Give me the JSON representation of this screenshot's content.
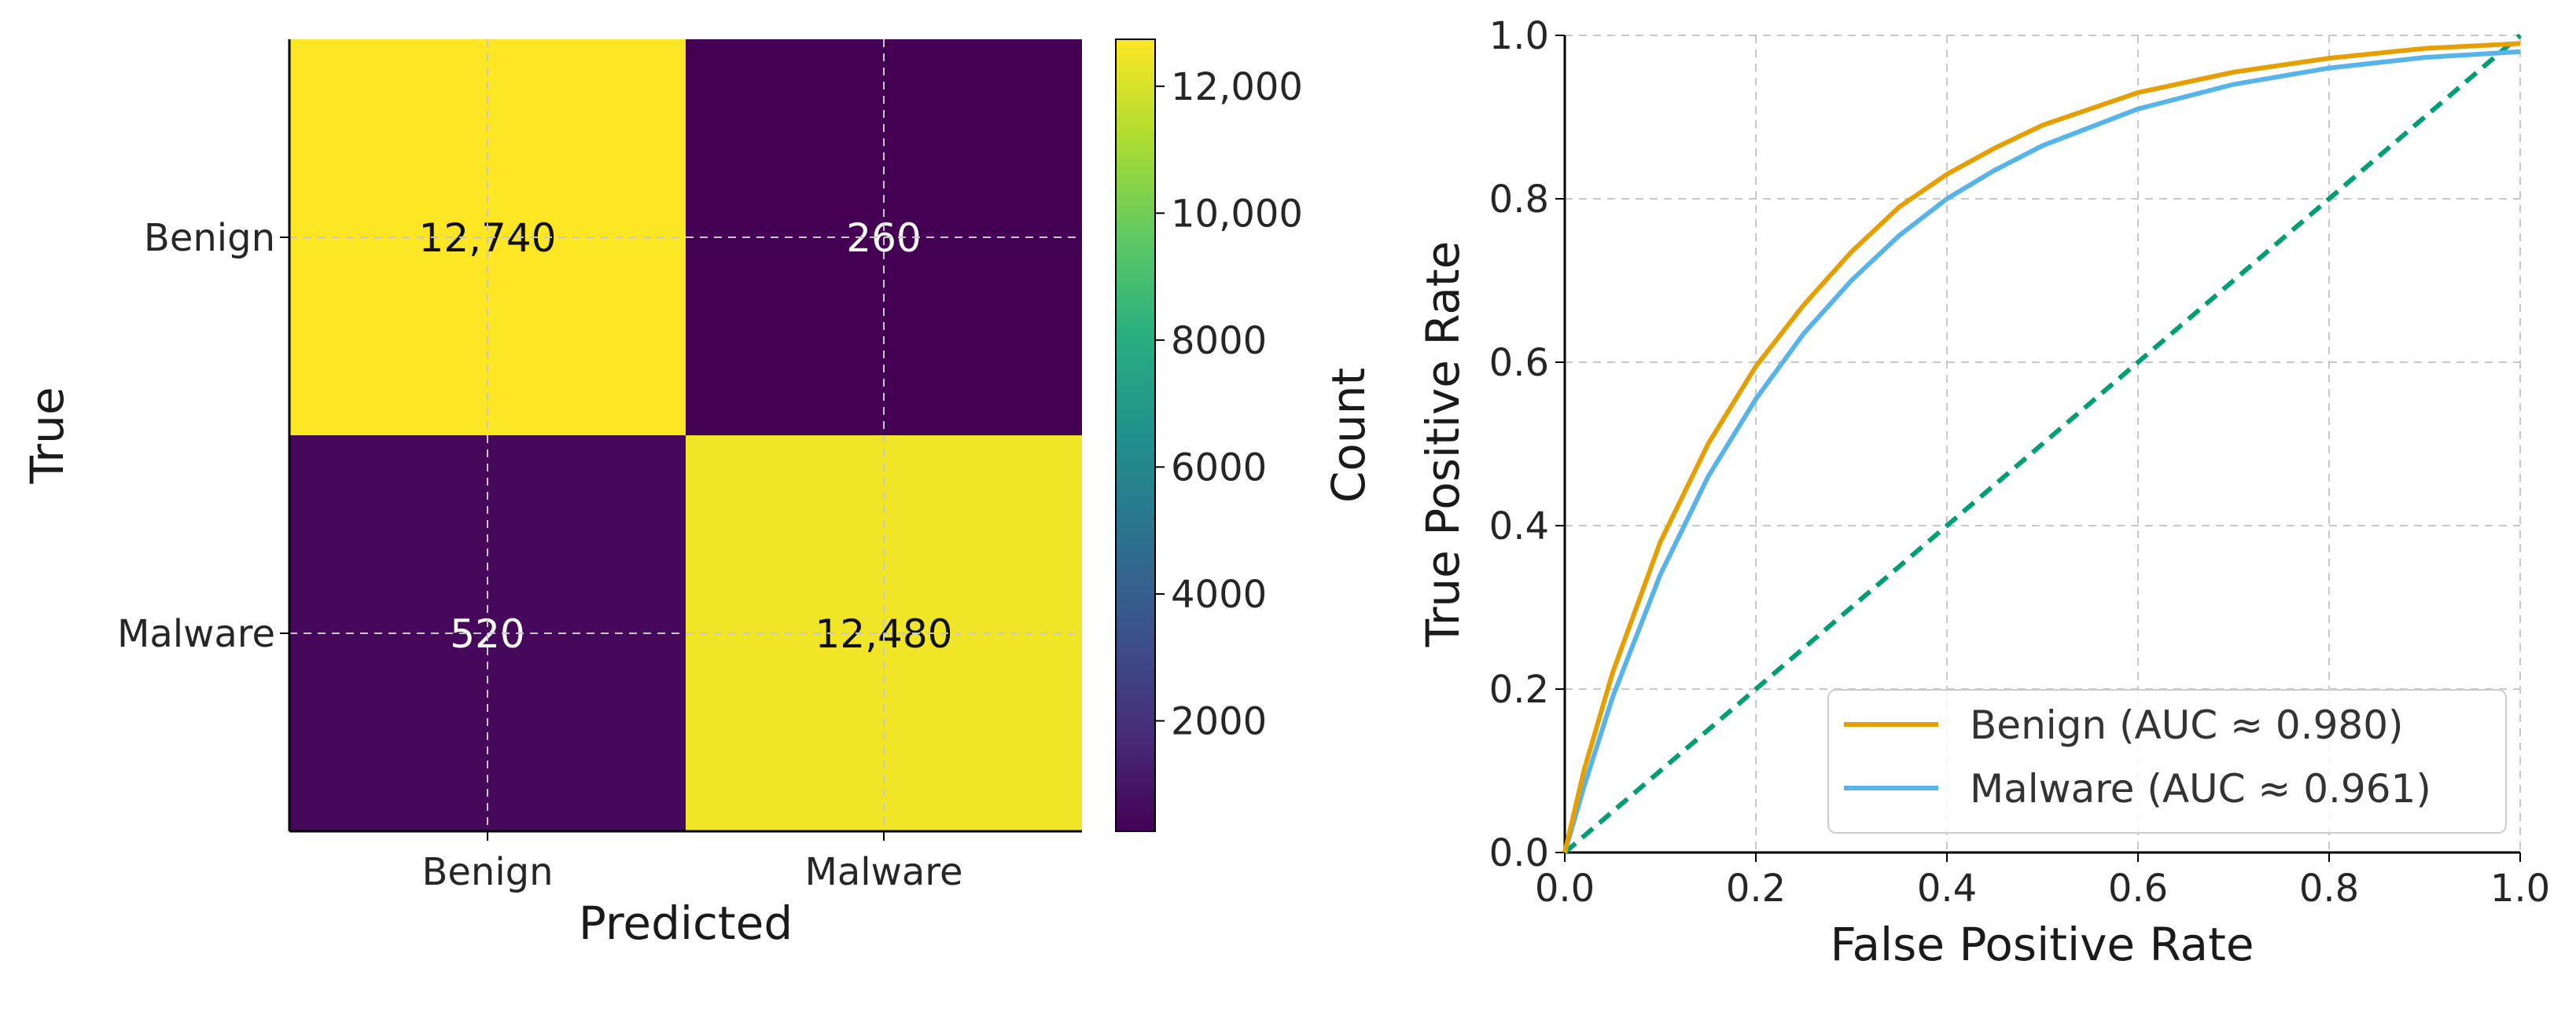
{
  "chart_data": [
    {
      "type": "heatmap",
      "xlabel": "Predicted",
      "ylabel": "True",
      "x_categories": [
        "Benign",
        "Malware"
      ],
      "y_categories": [
        "Benign",
        "Malware"
      ],
      "values": [
        [
          12740,
          260
        ],
        [
          520,
          12480
        ]
      ],
      "cell_labels": [
        [
          "12,740",
          "260"
        ],
        [
          "520",
          "12,480"
        ]
      ],
      "colormap": "viridis",
      "colorbar": {
        "label": "Count",
        "range": [
          260,
          12740
        ],
        "ticks": [
          2000,
          4000,
          6000,
          8000,
          10000,
          12000
        ],
        "tick_labels": [
          "2000",
          "4000",
          "6000",
          "8000",
          "10,000",
          "12,000"
        ]
      },
      "grid": true
    },
    {
      "type": "line",
      "xlabel": "False Positive Rate",
      "ylabel": "True Positive Rate",
      "xlim": [
        0,
        1
      ],
      "ylim": [
        0,
        1
      ],
      "xticks": [
        "0.0",
        "0.2",
        "0.4",
        "0.6",
        "0.8",
        "1.0"
      ],
      "yticks": [
        "0.0",
        "0.2",
        "0.4",
        "0.6",
        "0.8",
        "1.0"
      ],
      "grid": true,
      "legend_position": "bottom-right",
      "series": [
        {
          "name": "Benign (AUC ≈ 0.980)",
          "color": "#E69F00",
          "x": [
            0,
            0.02,
            0.05,
            0.1,
            0.15,
            0.2,
            0.25,
            0.3,
            0.35,
            0.4,
            0.45,
            0.5,
            0.6,
            0.7,
            0.8,
            0.9,
            1.0
          ],
          "y": [
            0,
            0.1,
            0.22,
            0.38,
            0.5,
            0.595,
            0.67,
            0.735,
            0.79,
            0.83,
            0.862,
            0.89,
            0.93,
            0.955,
            0.972,
            0.984,
            0.99
          ]
        },
        {
          "name": "Malware (AUC ≈ 0.961)",
          "color": "#56B4E9",
          "x": [
            0,
            0.02,
            0.05,
            0.1,
            0.15,
            0.2,
            0.25,
            0.3,
            0.35,
            0.4,
            0.45,
            0.5,
            0.6,
            0.7,
            0.8,
            0.9,
            1.0
          ],
          "y": [
            0,
            0.08,
            0.19,
            0.34,
            0.46,
            0.555,
            0.635,
            0.7,
            0.755,
            0.8,
            0.835,
            0.865,
            0.91,
            0.94,
            0.96,
            0.973,
            0.98
          ]
        },
        {
          "name": "",
          "color": "#009E73",
          "dashed": true,
          "x": [
            0,
            1
          ],
          "y": [
            0,
            1
          ]
        }
      ]
    }
  ]
}
